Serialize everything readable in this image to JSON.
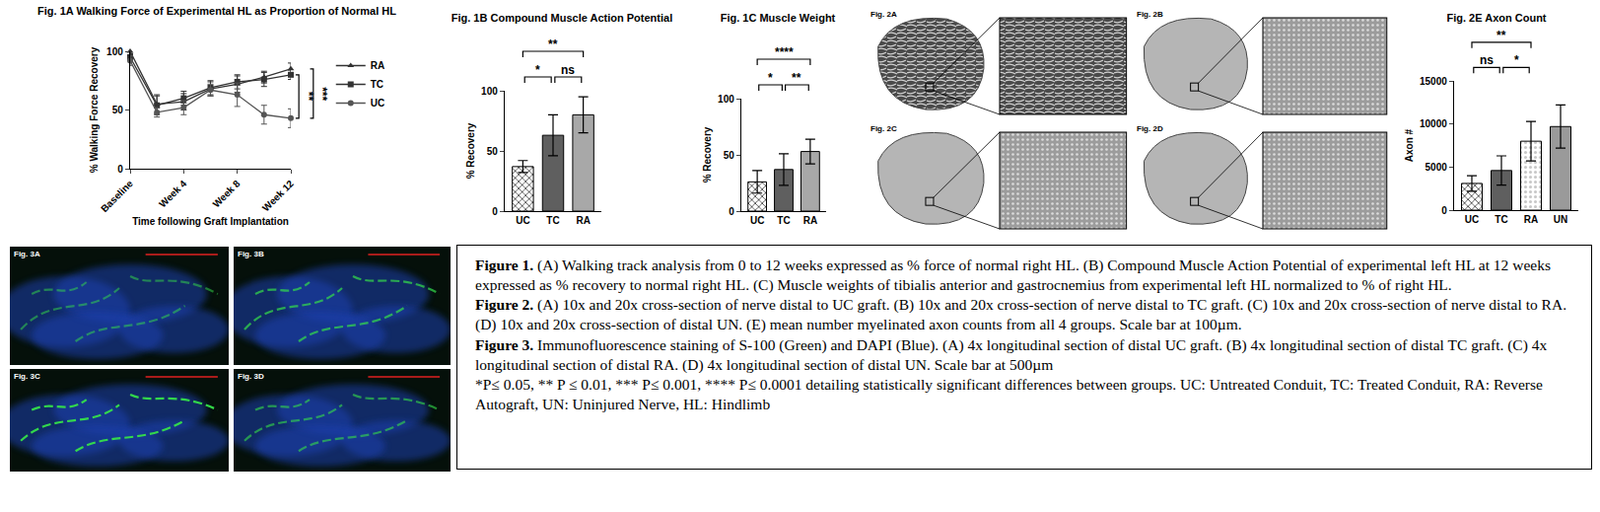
{
  "chart_data": [
    {
      "type": "line",
      "title": "Fig. 1A Walking Force of Experimental HL as Proportion of Normal HL",
      "x_label": "Time following Graft Implantation",
      "y_label": "% Walking Force Recovery",
      "x": [
        0,
        2,
        4,
        6,
        8,
        10,
        12
      ],
      "xlim": [
        0,
        12
      ],
      "xticks": [
        {
          "value": 0,
          "label": "Baseline"
        },
        {
          "value": 4,
          "label": "Week 4"
        },
        {
          "value": 8,
          "label": "Week 8"
        },
        {
          "value": 12,
          "label": "Week 12"
        }
      ],
      "ylim": [
        0,
        100
      ],
      "yticks": [
        0,
        50,
        100
      ],
      "grid": false,
      "legend": "top right",
      "series": [
        {
          "name": "RA",
          "color": "#333333",
          "marker": "triangle-up",
          "values": [
            100,
            55,
            57,
            68,
            72,
            78,
            85
          ],
          "errors": [
            2,
            8,
            7,
            6,
            7,
            5,
            5
          ]
        },
        {
          "name": "TC",
          "color": "#333333",
          "marker": "square",
          "values": [
            95,
            54,
            60,
            69,
            74,
            76,
            80
          ],
          "errors": [
            3,
            8,
            6,
            6,
            6,
            6,
            4
          ]
        },
        {
          "name": "UC",
          "color": "#555555",
          "marker": "circle",
          "values": [
            92,
            48,
            52,
            67,
            63,
            46,
            43
          ],
          "errors": [
            4,
            4,
            6,
            5,
            10,
            8,
            8
          ]
        }
      ],
      "significance": [
        {
          "from": "TC",
          "to": "UC",
          "text": "**"
        },
        {
          "from": "RA",
          "to": "UC",
          "text": "***"
        }
      ]
    },
    {
      "type": "bar",
      "title": "Fig. 1B Compound Muscle Action Potential",
      "y_label": "% Recovery",
      "categories": [
        "UC",
        "TC",
        "RA"
      ],
      "values": [
        37,
        63,
        80
      ],
      "errors": [
        5,
        17,
        15
      ],
      "colors": [
        "#3f3f3f",
        "#5f5f5f",
        "#a8a8a8"
      ],
      "ylim": [
        0,
        100
      ],
      "yticks": [
        0,
        50,
        100
      ],
      "grid": false,
      "significance": [
        {
          "from": "UC",
          "to": "TC",
          "text": "*"
        },
        {
          "from": "TC",
          "to": "RA",
          "text": "ns"
        },
        {
          "from": "UC",
          "to": "RA",
          "text": "**"
        }
      ]
    },
    {
      "type": "bar",
      "title": "Fig. 1C Muscle Weight",
      "y_label": "% Recovery",
      "categories": [
        "UC",
        "TC",
        "RA"
      ],
      "values": [
        26,
        37,
        53
      ],
      "errors": [
        10,
        14,
        11
      ],
      "colors": [
        "#3f3f3f",
        "#5f5f5f",
        "#a8a8a8"
      ],
      "ylim": [
        0,
        100
      ],
      "yticks": [
        0,
        50,
        100
      ],
      "grid": false,
      "significance": [
        {
          "from": "UC",
          "to": "TC",
          "text": "*"
        },
        {
          "from": "TC",
          "to": "RA",
          "text": "**"
        },
        {
          "from": "UC",
          "to": "RA",
          "text": "****"
        }
      ]
    },
    {
      "type": "bar",
      "title": "Fig. 2E Axon Count",
      "y_label": "Axon #",
      "categories": [
        "UC",
        "TC",
        "RA",
        "UN"
      ],
      "values": [
        3100,
        4600,
        8000,
        9700
      ],
      "errors": [
        900,
        1700,
        2300,
        2500
      ],
      "colors": [
        "#3f3f3f",
        "#5f5f5f",
        "#c8c8c8",
        "#9a9a9a"
      ],
      "ylim": [
        0,
        15000
      ],
      "yticks": [
        0,
        5000,
        10000,
        15000
      ],
      "grid": false,
      "significance": [
        {
          "from": "UC",
          "to": "TC",
          "text": "ns"
        },
        {
          "from": "TC",
          "to": "RA",
          "text": "*"
        },
        {
          "from": "UC",
          "to": "RA",
          "text": "**"
        }
      ]
    }
  ],
  "images": [
    {
      "label": "Fig. 2A"
    },
    {
      "label": "Fig. 2B"
    },
    {
      "label": "Fig. 2C"
    },
    {
      "label": "Fig. 2D"
    },
    {
      "label": "Fig. 3A"
    },
    {
      "label": "Fig. 3B"
    },
    {
      "label": "Fig. 3C"
    },
    {
      "label": "Fig. 3D"
    }
  ],
  "caption": [
    {
      "lead": "Figure 1.",
      "text": "(A) Walking track analysis from 0 to 12 weeks expressed as % force of normal right HL. (B) Compound Muscle Action Potential of experimental left HL at 12 weeks expressed as % recovery to normal right HL. (C) Muscle weights of tibialis anterior and gastrocnemius from experimental left HL normalized to % of right HL."
    },
    {
      "lead": "Figure 2.",
      "text": "(A) 10x and 20x cross-section of nerve distal to UC graft. (B) 10x and 20x cross-section of nerve distal to TC graft. (C) 10x and 20x cross-section of nerve distal to RA. (D) 10x and 20x cross-section of distal UN. (E) mean number myelinated axon counts from all 4 groups. Scale bar at 100µm."
    },
    {
      "lead": "Figure 3.",
      "text": "Immunofluorescence staining of S-100 (Green) and DAPI (Blue). (A) 4x longitudinal section of distal UC graft. (B) 4x longitudinal section of distal TC graft. (C) 4x longitudinal section of distal RA. (D) 4x longitudinal section of distal UN. Scale bar at 500µm"
    },
    {
      "text": "*P≤ 0.05, ** P ≤ 0.01, *** P≤ 0.001, **** P≤ 0.0001 detailing statistically significant differences between groups. UC: Untreated Conduit, TC: Treated Conduit, RA: Reverse Autograft, UN: Uninjured Nerve, HL: Hindlimb"
    }
  ]
}
